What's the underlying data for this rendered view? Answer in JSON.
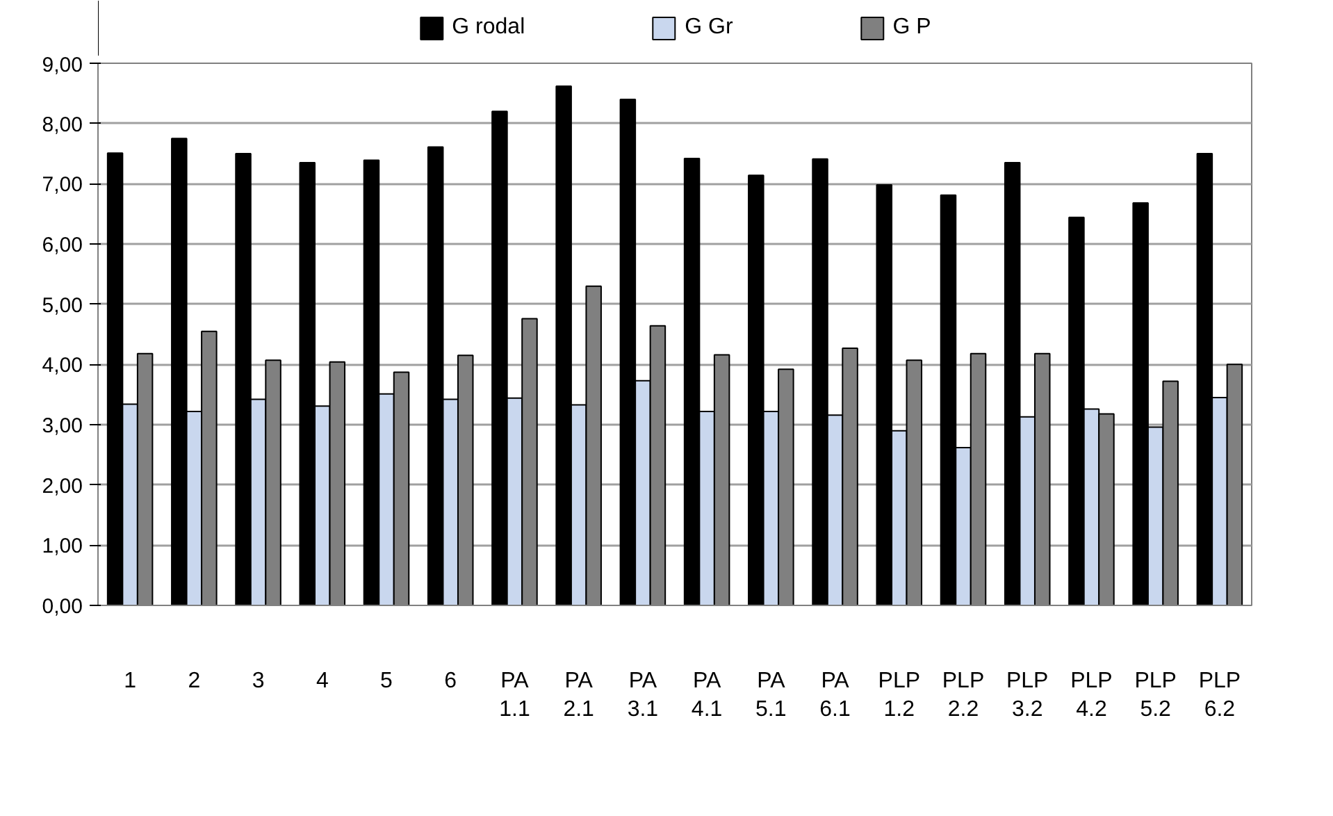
{
  "chart_data": {
    "type": "bar",
    "categories": [
      "1",
      "2",
      "3",
      "4",
      "5",
      "6",
      "PA\n1.1",
      "PA\n2.1",
      "PA\n3.1",
      "PA\n4.1",
      "PA\n5.1",
      "PA\n6.1",
      "PLP\n1.2",
      "PLP\n2.2",
      "PLP\n3.2",
      "PLP\n4.2",
      "PLP\n5.2",
      "PLP\n6.2"
    ],
    "series": [
      {
        "name": "G rodal",
        "color": "#000000",
        "values": [
          7.51,
          7.75,
          7.5,
          7.35,
          7.39,
          7.61,
          8.2,
          8.62,
          8.4,
          7.42,
          7.14,
          7.41,
          6.98,
          6.81,
          7.35,
          6.44,
          6.68,
          7.5
        ]
      },
      {
        "name": "G Gr",
        "color": "#c9d7ee",
        "values": [
          3.34,
          3.22,
          3.42,
          3.31,
          3.51,
          3.42,
          3.44,
          3.33,
          3.73,
          3.22,
          3.22,
          3.16,
          2.9,
          2.62,
          3.13,
          3.26,
          2.96,
          3.45
        ]
      },
      {
        "name": "G P",
        "color": "#808080",
        "values": [
          4.18,
          4.55,
          4.07,
          4.04,
          3.87,
          4.15,
          4.76,
          5.3,
          4.64,
          4.16,
          3.92,
          4.27,
          4.07,
          4.18,
          4.18,
          3.18,
          3.72,
          4.0
        ]
      }
    ],
    "ylim": [
      0,
      9
    ],
    "yticks": [
      {
        "value": 0,
        "label": "0,00"
      },
      {
        "value": 1,
        "label": "1,00"
      },
      {
        "value": 2,
        "label": "2,00"
      },
      {
        "value": 3,
        "label": "3,00"
      },
      {
        "value": 4,
        "label": "4,00"
      },
      {
        "value": 5,
        "label": "5,00"
      },
      {
        "value": 6,
        "label": "6,00"
      },
      {
        "value": 7,
        "label": "7,00"
      },
      {
        "value": 8,
        "label": "8,00"
      },
      {
        "value": 9,
        "label": "9,00"
      }
    ],
    "grid": "y",
    "legend": "top"
  }
}
